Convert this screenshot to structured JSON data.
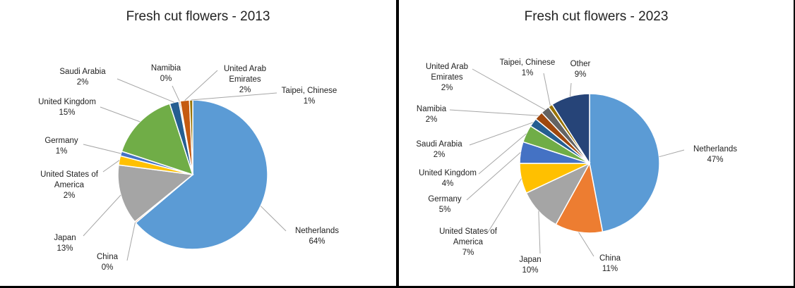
{
  "chart_data": [
    {
      "type": "pie",
      "title": "Fresh cut flowers - 2013",
      "slices": [
        {
          "name": "Netherlands",
          "pct": "64%",
          "value": 64,
          "color": "#5b9bd5"
        },
        {
          "name": "China",
          "pct": "0%",
          "value": 0.3,
          "color": "#ed7d31"
        },
        {
          "name": "Japan",
          "pct": "13%",
          "value": 13,
          "color": "#a5a5a5"
        },
        {
          "name": "United States of America",
          "pct": "2%",
          "value": 2,
          "color": "#ffc000"
        },
        {
          "name": "Germany",
          "pct": "1%",
          "value": 1,
          "color": "#4472c4"
        },
        {
          "name": "United Kingdom",
          "pct": "15%",
          "value": 15,
          "color": "#70ad47"
        },
        {
          "name": "Saudi Arabia",
          "pct": "2%",
          "value": 2,
          "color": "#255e91"
        },
        {
          "name": "Namibia",
          "pct": "0%",
          "value": 0.3,
          "color": "#9e480e"
        },
        {
          "name": "United Arab Emirates",
          "pct": "2%",
          "value": 2,
          "color": "#c55a11"
        },
        {
          "name": "Taipei, Chinese",
          "pct": "1%",
          "value": 0.7,
          "color": "#997300"
        }
      ]
    },
    {
      "type": "pie",
      "title": "Fresh cut flowers - 2023",
      "slices": [
        {
          "name": "Netherlands",
          "pct": "47%",
          "value": 47,
          "color": "#5b9bd5"
        },
        {
          "name": "China",
          "pct": "11%",
          "value": 11,
          "color": "#ed7d31"
        },
        {
          "name": "Japan",
          "pct": "10%",
          "value": 10,
          "color": "#a5a5a5"
        },
        {
          "name": "United States of America",
          "pct": "7%",
          "value": 7,
          "color": "#ffc000"
        },
        {
          "name": "Germany",
          "pct": "5%",
          "value": 5,
          "color": "#4472c4"
        },
        {
          "name": "United Kingdom",
          "pct": "4%",
          "value": 4,
          "color": "#70ad47"
        },
        {
          "name": "Saudi Arabia",
          "pct": "2%",
          "value": 2,
          "color": "#255e91"
        },
        {
          "name": "Namibia",
          "pct": "2%",
          "value": 2,
          "color": "#9e480e"
        },
        {
          "name": "United Arab Emirates",
          "pct": "2%",
          "value": 2,
          "color": "#636363"
        },
        {
          "name": "Taipei, Chinese",
          "pct": "1%",
          "value": 1,
          "color": "#997300"
        },
        {
          "name": "Other",
          "pct": "9%",
          "value": 9,
          "color": "#264478"
        }
      ]
    }
  ]
}
